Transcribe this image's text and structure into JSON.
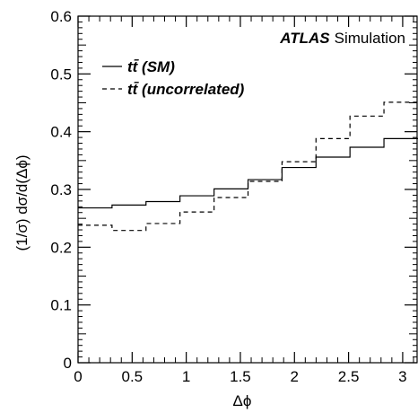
{
  "chart_data": {
    "type": "line",
    "step": true,
    "xlabel": "Δϕ",
    "ylabel": "(1/σ) dσ/d(Δϕ)",
    "xlim": [
      0,
      3.14159
    ],
    "ylim": [
      0,
      0.6
    ],
    "x_ticks": [
      0,
      0.5,
      1,
      1.5,
      2,
      2.5,
      3
    ],
    "x_tick_labels": [
      "0",
      "0.5",
      "1",
      "1.5",
      "2",
      "2.5",
      "3"
    ],
    "y_ticks": [
      0,
      0.1,
      0.2,
      0.3,
      0.4,
      0.5,
      0.6
    ],
    "y_tick_labels": [
      "0",
      "0.1",
      "0.2",
      "0.3",
      "0.4",
      "0.5",
      "0.6"
    ],
    "bin_edges": [
      0,
      0.314,
      0.628,
      0.942,
      1.257,
      1.571,
      1.885,
      2.199,
      2.513,
      2.827,
      3.142
    ],
    "series": [
      {
        "name": "tt̄ (SM)",
        "style": "solid",
        "values": [
          0.268,
          0.273,
          0.279,
          0.289,
          0.301,
          0.317,
          0.338,
          0.356,
          0.373,
          0.388
        ]
      },
      {
        "name": "tt̄ (uncorrelated)",
        "style": "dashed",
        "values": [
          0.238,
          0.229,
          0.241,
          0.261,
          0.286,
          0.314,
          0.348,
          0.388,
          0.427,
          0.451
        ]
      }
    ],
    "legend_position": "top-left",
    "grid": false,
    "annotation": {
      "bold": "ATLAS",
      "normal": "Simulation"
    }
  },
  "colors": {
    "line": "#000000",
    "background": "#ffffff"
  }
}
